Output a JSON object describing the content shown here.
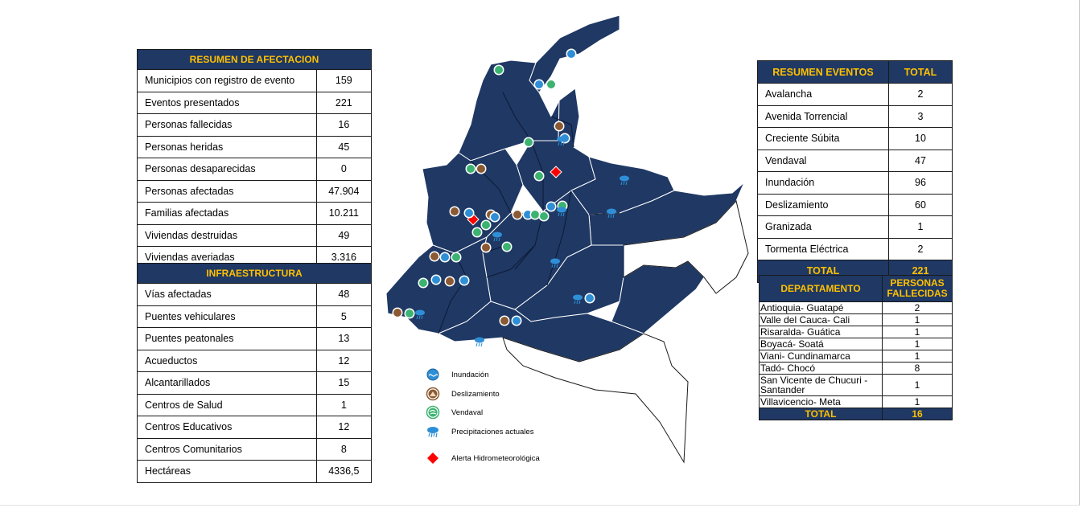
{
  "afectacion": {
    "header": "RESUMEN DE AFECTACION",
    "rows": [
      {
        "label": "Municipios con registro de evento",
        "value": "159"
      },
      {
        "label": "Eventos presentados",
        "value": "221"
      },
      {
        "label": "Personas fallecidas",
        "value": "16"
      },
      {
        "label": "Personas heridas",
        "value": "45"
      },
      {
        "label": "Personas desaparecidas",
        "value": "0"
      },
      {
        "label": "Personas afectadas",
        "value": "47.904"
      },
      {
        "label": "Familias afectadas",
        "value": "10.211"
      },
      {
        "label": "Viviendas destruidas",
        "value": "49"
      },
      {
        "label": "Viviendas averiadas",
        "value": "3.316"
      }
    ]
  },
  "infraestructura": {
    "header": "INFRAESTRUCTURA",
    "rows": [
      {
        "label": "Vías afectadas",
        "value": "48"
      },
      {
        "label": "Puentes vehiculares",
        "value": "5"
      },
      {
        "label": "Puentes peatonales",
        "value": "13"
      },
      {
        "label": "Acueductos",
        "value": "12"
      },
      {
        "label": "Alcantarillados",
        "value": "15"
      },
      {
        "label": "Centros de Salud",
        "value": "1"
      },
      {
        "label": "Centros Educativos",
        "value": "12"
      },
      {
        "label": "Centros Comunitarios",
        "value": "8"
      },
      {
        "label": "Hectáreas",
        "value": "4336,5"
      }
    ]
  },
  "eventos": {
    "header_left": "RESUMEN EVENTOS",
    "header_right": "TOTAL",
    "rows": [
      {
        "label": "Avalancha",
        "value": "2"
      },
      {
        "label": "Avenida Torrencial",
        "value": "3"
      },
      {
        "label": "Creciente Súbita",
        "value": "10"
      },
      {
        "label": "Vendaval",
        "value": "47"
      },
      {
        "label": "Inundación",
        "value": "96"
      },
      {
        "label": "Deslizamiento",
        "value": "60"
      },
      {
        "label": "Granizada",
        "value": "1"
      },
      {
        "label": "Tormenta Eléctrica",
        "value": "2"
      }
    ],
    "total_label": "TOTAL",
    "total_value": "221"
  },
  "fallecidas": {
    "header_left": "DEPARTAMENTO",
    "header_right_1": "PERSONAS",
    "header_right_2": "FALLECIDAS",
    "rows": [
      {
        "label": "Antioquia- Guatapé",
        "value": "2"
      },
      {
        "label": "Valle del Cauca- Cali",
        "value": "1"
      },
      {
        "label": "Risaralda- Guática",
        "value": "1"
      },
      {
        "label": "Boyacá- Soatá",
        "value": "1"
      },
      {
        "label": "Viani- Cundinamarca",
        "value": "1"
      },
      {
        "label": "Tadó- Chocó",
        "value": "8"
      },
      {
        "label": "San Vicente de Chucuri - Santander",
        "value": "1"
      },
      {
        "label": "Villavicencio- Meta",
        "value": "1"
      }
    ],
    "total_label": "TOTAL",
    "total_value": "16"
  },
  "legend": {
    "inundacion": "Inundación",
    "deslizamiento": "Deslizamiento",
    "vendaval": "Vendaval",
    "precipitaciones": "Precipitaciones actuales",
    "alerta": "Alerta Hidrometeorológica"
  },
  "colors": {
    "header_bg": "#1f3864",
    "header_text": "#ffc000",
    "map_fill": "#1f3864",
    "inundacion": "#2f8fd6",
    "deslizamiento": "#8b5a32",
    "vendaval": "#3cb371",
    "alerta": "#ff0000"
  },
  "icons": {
    "inundacion": "flood-icon",
    "deslizamiento": "landslide-icon",
    "vendaval": "windstorm-icon",
    "precipitaciones": "rain-cloud-icon",
    "alerta": "warning-diamond-icon"
  }
}
